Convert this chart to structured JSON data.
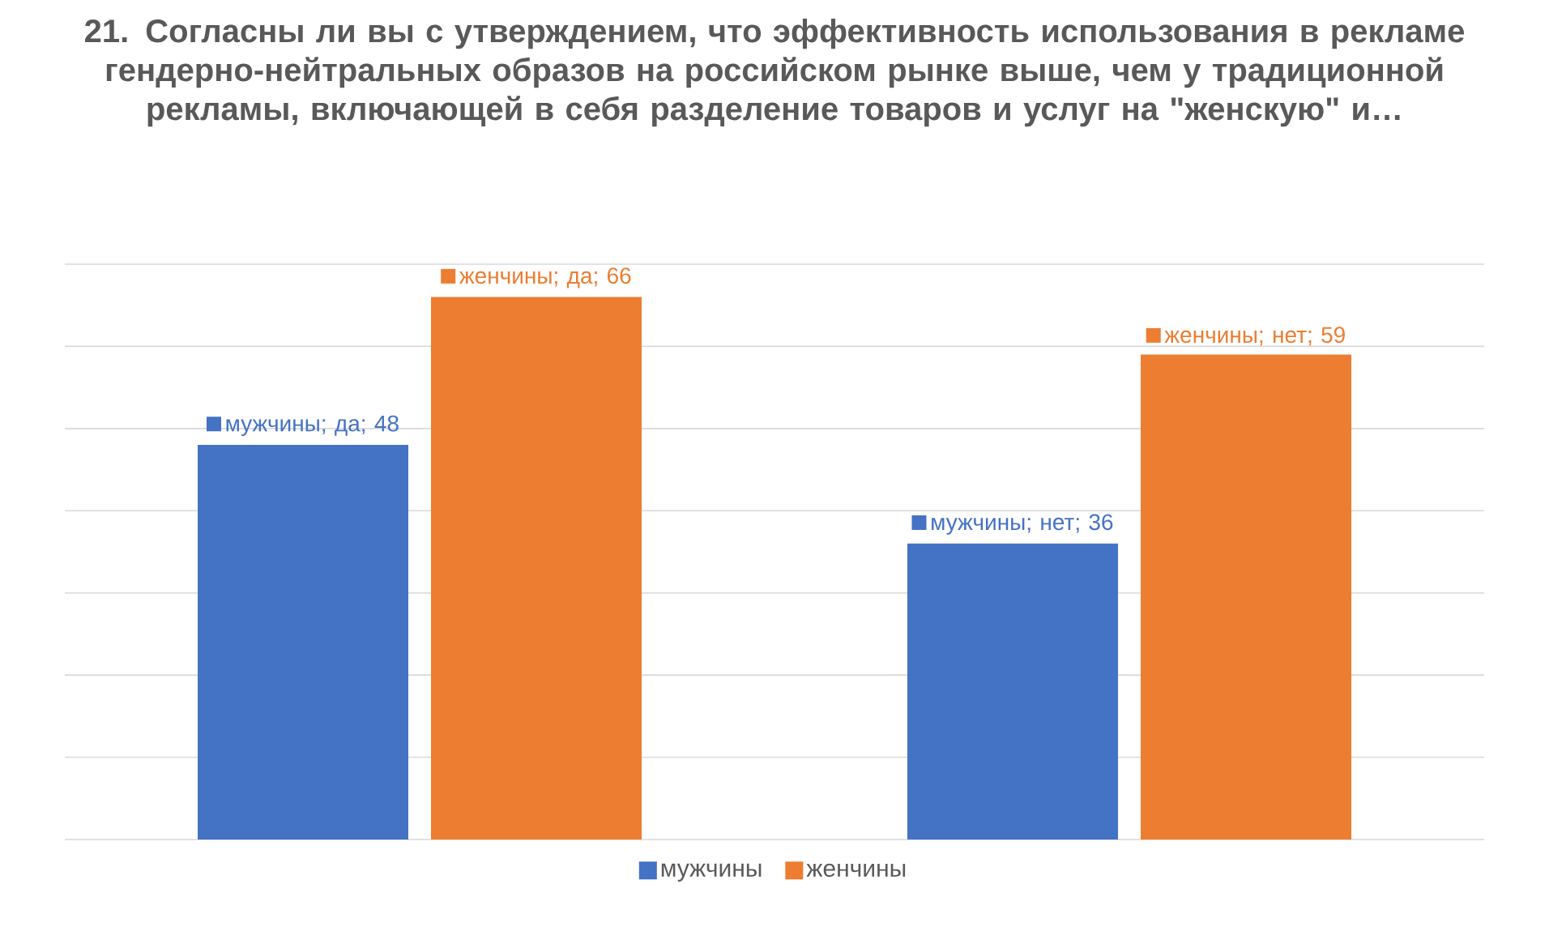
{
  "chart_data": {
    "type": "bar",
    "title": "21. Согласны ли вы с утверждением, что эффективность использования в рекламе гендерно-нейтральных образов на российском рынке выше, чем у традиционной рекламы, включающей в себя разделение товаров и услуг на \"женскую\" и…",
    "categories": [
      null,
      null
    ],
    "series": [
      {
        "name": "мужчины",
        "color": "#4472c4",
        "values": [
          48,
          36
        ],
        "value_labels": [
          "мужчины; да; 48",
          "мужчины; нет; 36"
        ]
      },
      {
        "name": "женчины",
        "color": "#ed7d31",
        "values": [
          66,
          59
        ],
        "value_labels": [
          "женчины; да; 66",
          "женчины; нет; 59"
        ]
      }
    ],
    "ylim": [
      0,
      70
    ],
    "yticks": [
      {
        "value": 0,
        "label": null
      },
      {
        "value": 10,
        "label": null
      },
      {
        "value": 20,
        "label": null
      },
      {
        "value": 30,
        "label": null
      },
      {
        "value": 40,
        "label": null
      },
      {
        "value": 50,
        "label": null
      },
      {
        "value": 60,
        "label": null
      },
      {
        "value": 70,
        "label": null
      }
    ],
    "grid": "y",
    "legend": "bottom"
  }
}
